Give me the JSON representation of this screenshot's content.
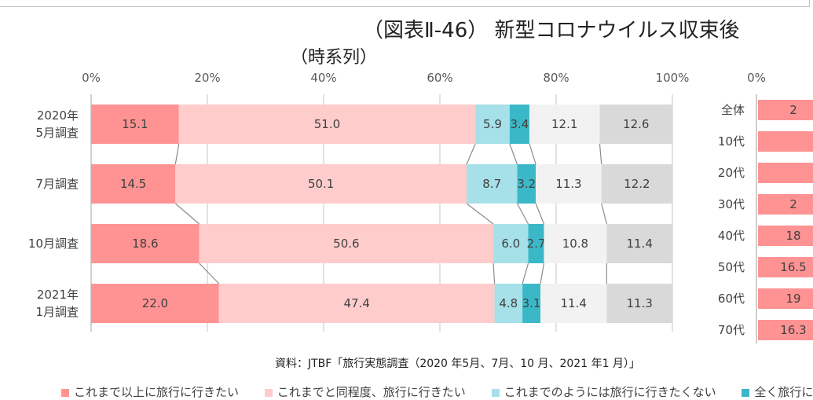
{
  "title": "（図表Ⅱ-46） 新型コロナウイルス収束後",
  "subtitle": "（時系列）",
  "source": "資料：JTBF「旅行実態調査（2020 年5月、7月、10 月、2021 年1 月）」",
  "legend": [
    {
      "label": "これまで以上に旅行に行きたい",
      "color": "#FF9393"
    },
    {
      "label": "これまでと同程度、旅行に行きたい",
      "color": "#FFCCCC"
    },
    {
      "label": "これまでのようには旅行に行きたくない",
      "color": "#A6E0E8"
    },
    {
      "label": "全く旅行に行き",
      "color": "#3BB8C8"
    }
  ],
  "chart_data": [
    {
      "type": "bar",
      "orientation": "horizontal",
      "stacked": true,
      "xlim": [
        0,
        100
      ],
      "x_ticks": [
        "0%",
        "20%",
        "40%",
        "60%",
        "80%",
        "100%"
      ],
      "grid": true,
      "categories": [
        "2020年\n5月調査",
        "7月調査",
        "10月調査",
        "2021年\n1月調査"
      ],
      "colors": [
        "#FF9393",
        "#FFCCCC",
        "#A6E0E8",
        "#3BB8C8",
        "#F2F2F2",
        "#D9D9D9"
      ],
      "series": [
        {
          "name": "これまで以上に旅行に行きたい",
          "values": [
            15.1,
            14.5,
            18.6,
            22.0
          ]
        },
        {
          "name": "これまでと同程度、旅行に行きたい",
          "values": [
            51.0,
            50.1,
            50.6,
            47.4
          ]
        },
        {
          "name": "これまでのようには旅行に行きたくない",
          "values": [
            5.9,
            8.7,
            6.0,
            4.8
          ]
        },
        {
          "name": "全く旅行に行き",
          "values": [
            3.4,
            3.2,
            2.7,
            3.1
          ]
        },
        {
          "values": [
            12.1,
            11.3,
            10.8,
            11.4
          ]
        },
        {
          "values": [
            12.6,
            12.2,
            11.4,
            11.3
          ]
        }
      ]
    },
    {
      "type": "bar",
      "orientation": "horizontal",
      "stacked": true,
      "x_ticks": [
        "0%"
      ],
      "categories": [
        "全体",
        "10代",
        "20代",
        "30代",
        "40代",
        "50代",
        "60代",
        "70代"
      ],
      "color": "#FF9393",
      "visible_labels": [
        "2",
        "",
        "",
        "2",
        "18",
        "16.5",
        "19",
        "16.3"
      ]
    }
  ]
}
